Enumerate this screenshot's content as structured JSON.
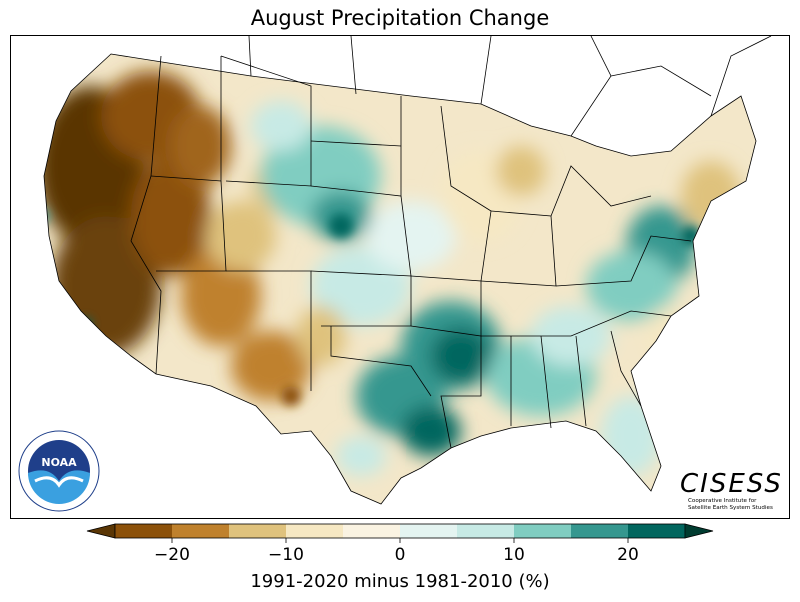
{
  "title": "August Precipitation Change",
  "colorbar": {
    "label": "1991-2020 minus 1981-2010 (%)",
    "ticks": [
      "−20",
      "−10",
      "0",
      "10",
      "20"
    ],
    "tick_values": [
      -20,
      -10,
      0,
      10,
      20
    ],
    "range": [
      -25,
      25
    ],
    "colors": [
      "#8c510a",
      "#bf812d",
      "#dfc27d",
      "#f6e8c3",
      "#faf3e2",
      "#e4f4f1",
      "#c7eae5",
      "#80cdc1",
      "#35978f",
      "#01665e"
    ],
    "under_color": "#5a3605",
    "over_color": "#003c30"
  },
  "logos": {
    "noaa_text": "NOAA",
    "noaa_ring_text": "NATIONAL OCEANIC AND ATMOSPHERIC ADMINISTRATION · U.S. DEPARTMENT OF COMMERCE",
    "cisess_name": "CISESS",
    "cisess_line1": "Cooperative Institute for",
    "cisess_line2": "Satellite Earth System Studies"
  }
}
